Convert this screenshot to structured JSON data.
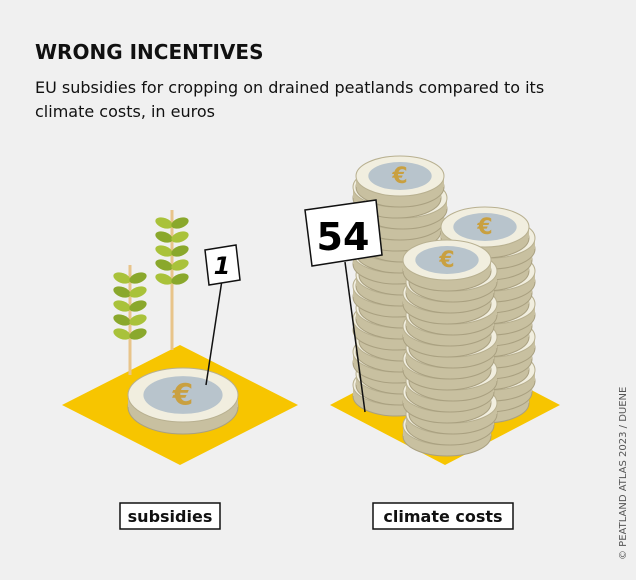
{
  "header": {
    "title": "WRONG INCENTIVES",
    "subtitle": "EU subsidies for cropping on drained peatlands compared to its climate costs, in euros"
  },
  "items": [
    {
      "label": "subsidies",
      "value": "1"
    },
    {
      "label": "climate costs",
      "value": "54"
    }
  ],
  "credit": "© PEATLAND ATLAS 2023 / DUENE"
}
